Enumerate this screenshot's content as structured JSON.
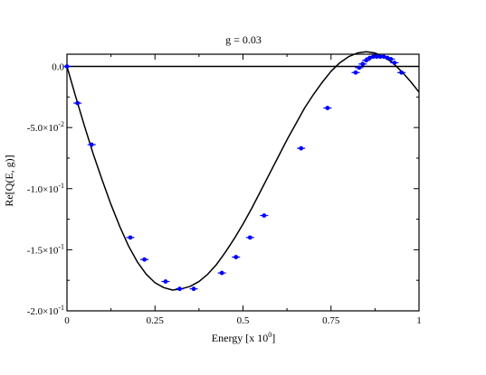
{
  "chart_data": {
    "type": "line",
    "title": "g = 0.03",
    "xlabel": "Energy [x 10",
    "xlabel_exponent": "0",
    "xlabel_suffix": "]",
    "ylabel": "Re[Q(E, g)]",
    "xlim": [
      0,
      1
    ],
    "ylim": [
      -0.2,
      0.01
    ],
    "grid": false,
    "x_ticks": [
      {
        "value": 0,
        "label": "0"
      },
      {
        "value": 0.25,
        "label": "0.25"
      },
      {
        "value": 0.5,
        "label": "0.5"
      },
      {
        "value": 0.75,
        "label": "0.75"
      },
      {
        "value": 1,
        "label": "1"
      }
    ],
    "y_ticks": [
      {
        "value": 0,
        "label": "0.0"
      },
      {
        "value": -0.05,
        "mantissa": "-5.0",
        "exponent": "-2"
      },
      {
        "value": -0.1,
        "mantissa": "-1.0",
        "exponent": "-1"
      },
      {
        "value": -0.15,
        "mantissa": "-1.5",
        "exponent": "-1"
      },
      {
        "value": -0.2,
        "mantissa": "-2.0",
        "exponent": "-1"
      }
    ],
    "reference_line": {
      "y": 0
    },
    "colors": {
      "curve": "#000000",
      "points": "#0000ff",
      "axis": "#000000"
    },
    "series": [
      {
        "kind": "curve",
        "x": [
          0,
          0.025,
          0.05,
          0.075,
          0.1,
          0.125,
          0.15,
          0.175,
          0.2,
          0.225,
          0.25,
          0.275,
          0.3,
          0.325,
          0.35,
          0.375,
          0.4,
          0.425,
          0.45,
          0.475,
          0.5,
          0.525,
          0.55,
          0.575,
          0.6,
          0.625,
          0.65,
          0.675,
          0.7,
          0.725,
          0.75,
          0.775,
          0.8,
          0.825,
          0.85,
          0.875,
          0.9,
          0.925,
          0.95,
          0.975,
          1
        ],
        "y": [
          0,
          -0.025,
          -0.049,
          -0.072,
          -0.093,
          -0.113,
          -0.131,
          -0.147,
          -0.16,
          -0.17,
          -0.177,
          -0.181,
          -0.183,
          -0.182,
          -0.18,
          -0.176,
          -0.17,
          -0.162,
          -0.152,
          -0.141,
          -0.129,
          -0.116,
          -0.102,
          -0.088,
          -0.074,
          -0.06,
          -0.047,
          -0.034,
          -0.023,
          -0.013,
          -0.004,
          0.003,
          0.008,
          0.011,
          0.012,
          0.011,
          0.008,
          0.003,
          -0.004,
          -0.012,
          -0.021
        ]
      },
      {
        "kind": "points",
        "x": [
          0,
          0.03,
          0.07,
          0.18,
          0.22,
          0.28,
          0.32,
          0.36,
          0.44,
          0.48,
          0.52,
          0.56,
          0.665,
          0.74,
          0.82,
          0.83,
          0.84,
          0.85,
          0.86,
          0.87,
          0.88,
          0.89,
          0.9,
          0.91,
          0.92,
          0.93,
          0.95
        ],
        "y": [
          0,
          -0.03,
          -0.064,
          -0.14,
          -0.158,
          -0.176,
          -0.182,
          -0.182,
          -0.169,
          -0.156,
          -0.14,
          -0.122,
          -0.067,
          -0.034,
          -0.005,
          -0.001,
          0.002,
          0.005,
          0.007,
          0.008,
          0.008,
          0.008,
          0.008,
          0.007,
          0.006,
          0.003,
          -0.005
        ]
      }
    ]
  }
}
